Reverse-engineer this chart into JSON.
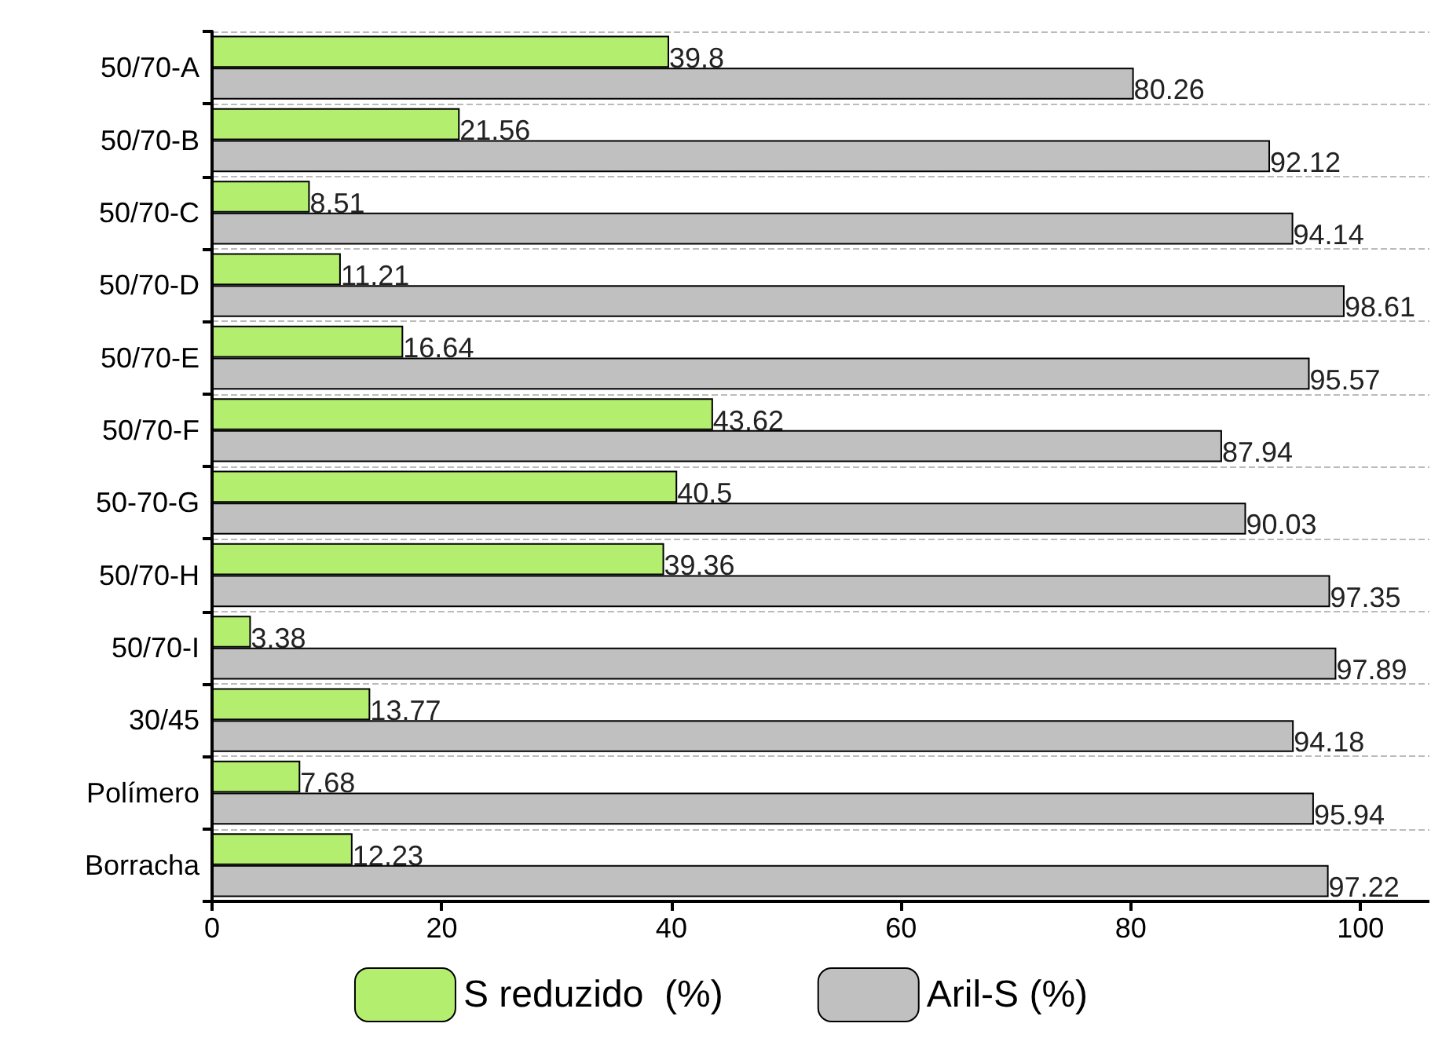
{
  "chart_data": {
    "type": "bar",
    "orientation": "horizontal",
    "categories": [
      "50/70-A",
      "50/70-B",
      "50/70-C",
      "50/70-D",
      "50/70-E",
      "50/70-F",
      "50-70-G",
      "50/70-H",
      "50/70-I",
      "30/45",
      "Polímero",
      "Borracha"
    ],
    "series": [
      {
        "name": "S reduzido  (%)",
        "color": "#b3ee6e",
        "values": [
          39.8,
          21.56,
          8.51,
          11.21,
          16.64,
          43.62,
          40.5,
          39.36,
          3.38,
          13.77,
          7.68,
          12.23
        ]
      },
      {
        "name": "Aril-S (%)",
        "color": "#c0c0c0",
        "values": [
          80.26,
          92.12,
          94.14,
          98.61,
          95.57,
          87.94,
          90.03,
          97.35,
          97.89,
          94.18,
          95.94,
          97.22
        ]
      }
    ],
    "xlim": [
      0,
      106
    ],
    "xticks": [
      0,
      20,
      40,
      60,
      80,
      100
    ],
    "grid": "y",
    "legend": "bottom",
    "data_labels": true
  }
}
